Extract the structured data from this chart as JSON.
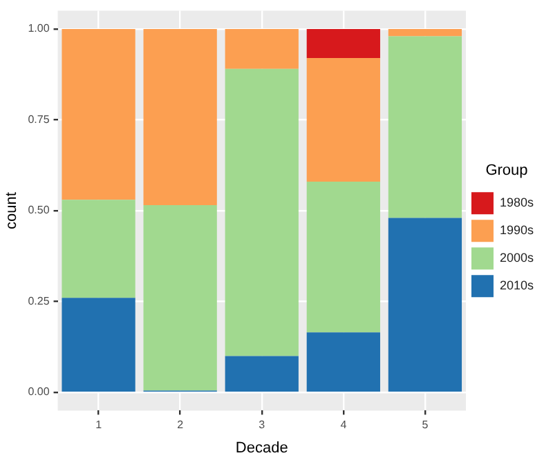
{
  "chart_data": {
    "type": "bar",
    "stacked": true,
    "xlabel": "Decade",
    "ylabel": "count",
    "legend_title": "Group",
    "legend": "right",
    "grid": true,
    "categories": [
      "1",
      "2",
      "3",
      "4",
      "5"
    ],
    "ylim": [
      -0.05,
      1.05
    ],
    "yticks": [
      {
        "value": 0,
        "label": "0.00"
      },
      {
        "value": 0.25,
        "label": "0.25"
      },
      {
        "value": 0.5,
        "label": "0.50"
      },
      {
        "value": 0.75,
        "label": "0.75"
      },
      {
        "value": 1,
        "label": "1.00"
      }
    ],
    "series": [
      {
        "name": "2010s",
        "color": "#2171b0",
        "values": [
          0.26,
          0.005,
          0.1,
          0.165,
          0.48
        ]
      },
      {
        "name": "2000s",
        "color": "#a1d98f",
        "values": [
          0.27,
          0.51,
          0.79,
          0.415,
          0.5
        ]
      },
      {
        "name": "1990s",
        "color": "#fc9f51",
        "values": [
          0.47,
          0.485,
          0.11,
          0.34,
          0.02
        ]
      },
      {
        "name": "1980s",
        "color": "#d7191c",
        "values": [
          null,
          null,
          null,
          0.08,
          null
        ]
      }
    ]
  }
}
